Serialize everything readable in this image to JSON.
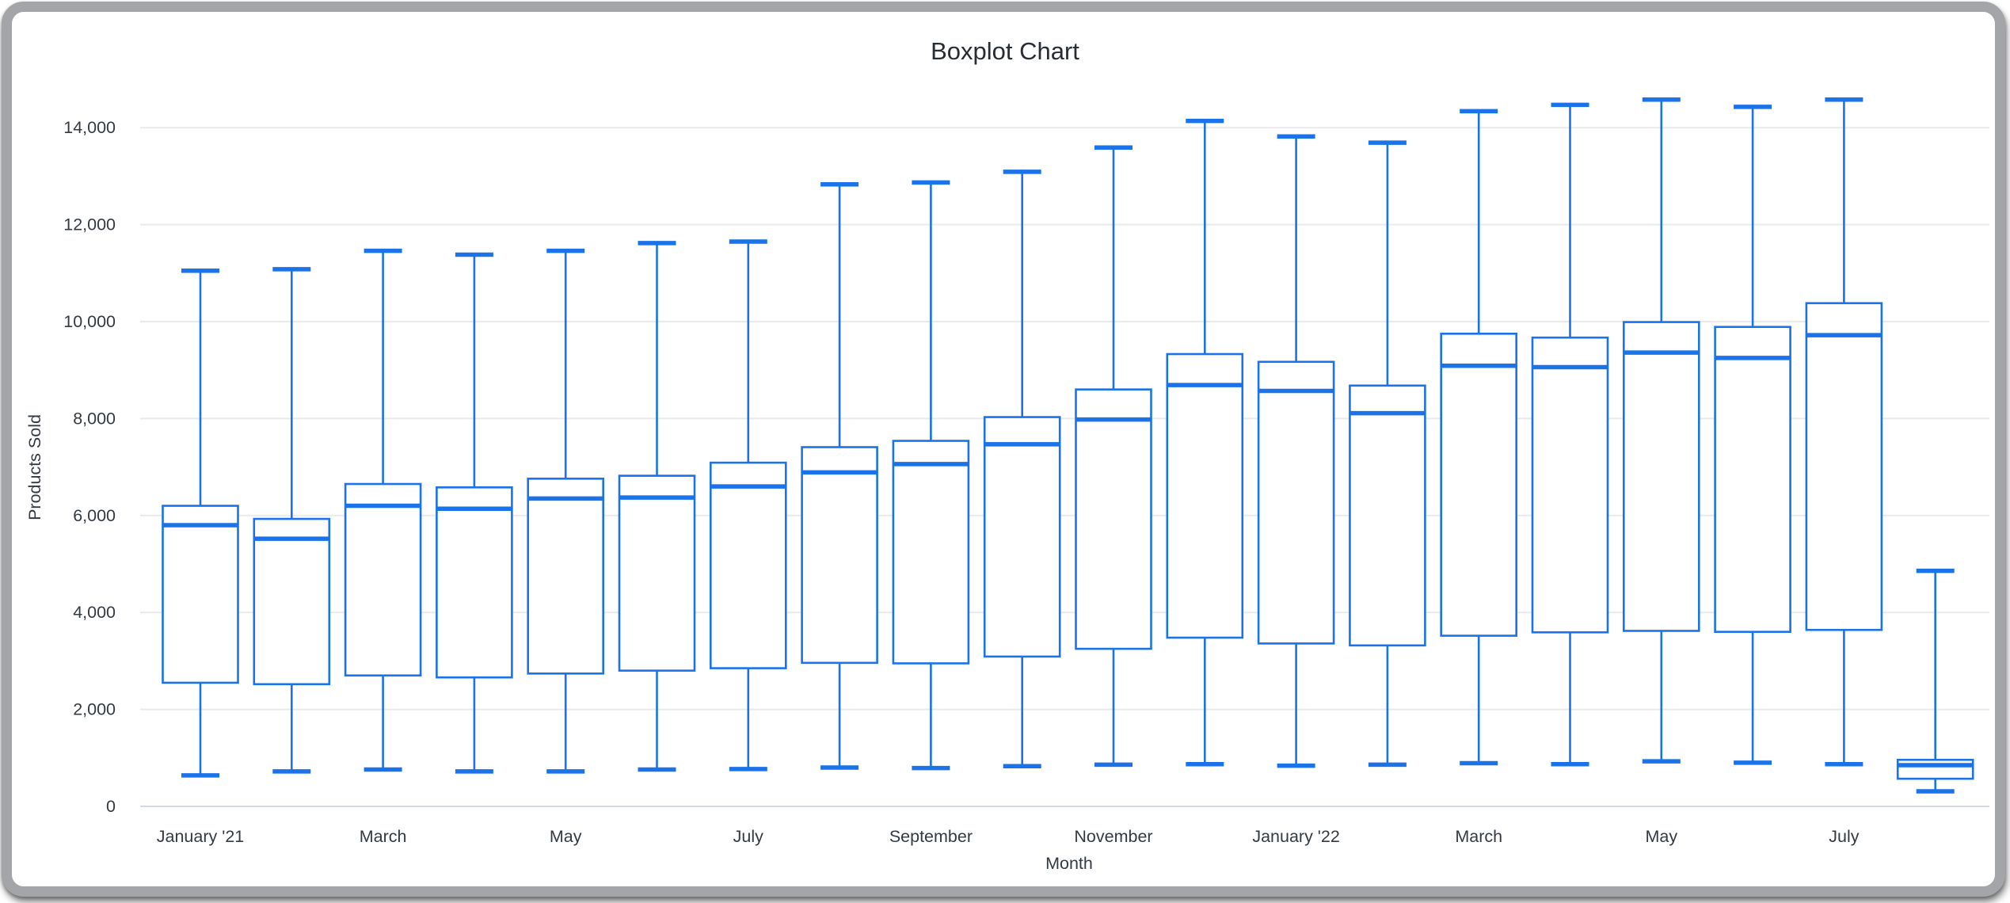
{
  "chart_data": {
    "type": "boxplot",
    "title": "Boxplot Chart",
    "xlabel": "Month",
    "ylabel": "Products Sold",
    "ylim": [
      0,
      14000
    ],
    "ytick_step": 2000,
    "grid": "horizontal",
    "legend_position": "none",
    "ytick_labels": [
      "0",
      "2,000",
      "4,000",
      "6,000",
      "8,000",
      "10,000",
      "12,000",
      "14,000"
    ],
    "boxes": [
      {
        "label": "January '21",
        "min": 640,
        "q1": 2550,
        "median": 5800,
        "q3": 6200,
        "max": 11050
      },
      {
        "label": "",
        "min": 720,
        "q1": 2520,
        "median": 5520,
        "q3": 5930,
        "max": 11080
      },
      {
        "label": "March",
        "min": 760,
        "q1": 2700,
        "median": 6200,
        "q3": 6650,
        "max": 11460
      },
      {
        "label": "",
        "min": 720,
        "q1": 2660,
        "median": 6140,
        "q3": 6580,
        "max": 11380
      },
      {
        "label": "May",
        "min": 720,
        "q1": 2740,
        "median": 6350,
        "q3": 6760,
        "max": 11460
      },
      {
        "label": "",
        "min": 760,
        "q1": 2800,
        "median": 6370,
        "q3": 6820,
        "max": 11620
      },
      {
        "label": "July",
        "min": 770,
        "q1": 2850,
        "median": 6600,
        "q3": 7090,
        "max": 11650
      },
      {
        "label": "",
        "min": 800,
        "q1": 2960,
        "median": 6890,
        "q3": 7410,
        "max": 12830
      },
      {
        "label": "September",
        "min": 790,
        "q1": 2950,
        "median": 7060,
        "q3": 7540,
        "max": 12870
      },
      {
        "label": "",
        "min": 830,
        "q1": 3090,
        "median": 7470,
        "q3": 8030,
        "max": 13090
      },
      {
        "label": "November",
        "min": 860,
        "q1": 3250,
        "median": 7980,
        "q3": 8600,
        "max": 13590
      },
      {
        "label": "",
        "min": 870,
        "q1": 3480,
        "median": 8690,
        "q3": 9330,
        "max": 14140
      },
      {
        "label": "January '22",
        "min": 840,
        "q1": 3360,
        "median": 8570,
        "q3": 9170,
        "max": 13820
      },
      {
        "label": "",
        "min": 860,
        "q1": 3320,
        "median": 8110,
        "q3": 8680,
        "max": 13690
      },
      {
        "label": "March",
        "min": 890,
        "q1": 3520,
        "median": 9090,
        "q3": 9750,
        "max": 14340
      },
      {
        "label": "",
        "min": 870,
        "q1": 3590,
        "median": 9060,
        "q3": 9670,
        "max": 14470
      },
      {
        "label": "May",
        "min": 930,
        "q1": 3620,
        "median": 9360,
        "q3": 9990,
        "max": 14580
      },
      {
        "label": "",
        "min": 900,
        "q1": 3600,
        "median": 9250,
        "q3": 9890,
        "max": 14430
      },
      {
        "label": "July",
        "min": 870,
        "q1": 3640,
        "median": 9720,
        "q3": 10380,
        "max": 14580
      },
      {
        "label": "",
        "min": 310,
        "q1": 570,
        "median": 850,
        "q3": 960,
        "max": 4860
      }
    ],
    "colors": {
      "box_stroke": "#1a73e8",
      "box_fill": "#ffffff",
      "grid": "#eaeaec",
      "zero_line": "#d3d9e8",
      "tick_text": "#333a41",
      "title_text": "#272d33"
    }
  }
}
